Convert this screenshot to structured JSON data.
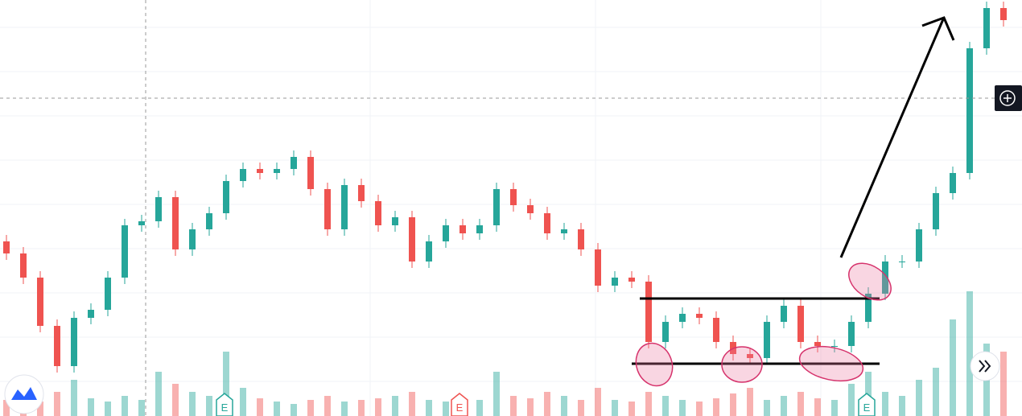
{
  "chart_data": {
    "type": "candlestick",
    "open": [
      217,
      202,
      172,
      112,
      62,
      122,
      132,
      172,
      237,
      242,
      272,
      207,
      232,
      252,
      292,
      307,
      302,
      307,
      322,
      282,
      232,
      287,
      267,
      237,
      247,
      192,
      217,
      237,
      227,
      237,
      282,
      262,
      252,
      227,
      232,
      207,
      162,
      172,
      167,
      92,
      117,
      127,
      122,
      92,
      77,
      72,
      117,
      137,
      92,
      87,
      87,
      117,
      152,
      192,
      192,
      232,
      277,
      302,
      457,
      507
    ],
    "high": [
      225,
      210,
      180,
      120,
      130,
      140,
      180,
      245,
      250,
      280,
      280,
      240,
      260,
      300,
      315,
      315,
      315,
      330,
      330,
      290,
      295,
      295,
      275,
      255,
      255,
      225,
      245,
      245,
      245,
      290,
      290,
      270,
      260,
      240,
      240,
      215,
      180,
      180,
      175,
      125,
      135,
      135,
      130,
      100,
      85,
      125,
      145,
      145,
      100,
      95,
      125,
      160,
      200,
      200,
      240,
      285,
      310,
      465,
      515,
      515
    ],
    "low": [
      194,
      164,
      104,
      54,
      54,
      114,
      124,
      164,
      229,
      234,
      199,
      199,
      224,
      244,
      284,
      294,
      294,
      299,
      274,
      224,
      224,
      259,
      229,
      229,
      184,
      184,
      209,
      219,
      219,
      229,
      254,
      244,
      219,
      219,
      199,
      154,
      154,
      159,
      84,
      84,
      109,
      114,
      84,
      69,
      64,
      64,
      109,
      84,
      79,
      79,
      79,
      109,
      144,
      184,
      184,
      224,
      269,
      294,
      449,
      484
    ],
    "close": [
      202,
      172,
      112,
      62,
      122,
      132,
      172,
      237,
      242,
      272,
      207,
      232,
      252,
      292,
      307,
      302,
      307,
      322,
      282,
      232,
      287,
      267,
      237,
      247,
      192,
      217,
      237,
      227,
      237,
      282,
      262,
      252,
      227,
      232,
      207,
      162,
      172,
      167,
      92,
      117,
      127,
      122,
      92,
      77,
      72,
      117,
      137,
      92,
      87,
      87,
      117,
      152,
      192,
      192,
      232,
      277,
      302,
      457,
      507,
      492
    ],
    "volume": [
      20,
      25,
      18,
      30,
      45,
      22,
      18,
      25,
      20,
      55,
      40,
      30,
      25,
      80,
      35,
      22,
      18,
      15,
      20,
      25,
      18,
      20,
      22,
      25,
      30,
      20,
      18,
      22,
      20,
      55,
      25,
      22,
      30,
      25,
      20,
      35,
      20,
      18,
      30,
      25,
      20,
      18,
      22,
      28,
      35,
      20,
      25,
      30,
      22,
      20,
      40,
      55,
      30,
      25,
      45,
      60,
      120,
      155,
      90,
      80
    ],
    "ylim": [
      0,
      517
    ],
    "volume_lim": [
      0,
      160
    ],
    "up_color": "#26a69a",
    "down_color": "#ef5350",
    "event_markers": [
      "E",
      "E",
      "E"
    ]
  }
}
